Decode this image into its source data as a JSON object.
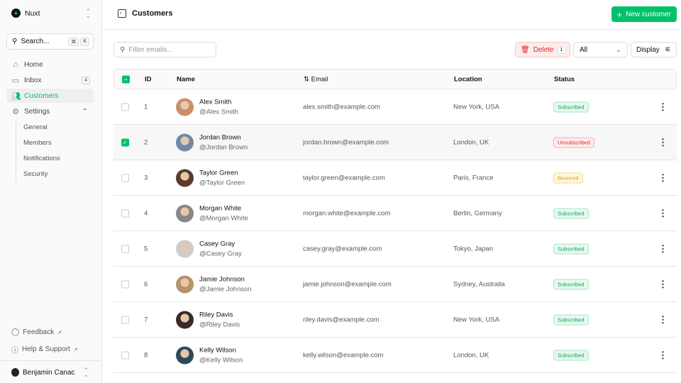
{
  "sidebar": {
    "brand": "Nuxt",
    "search": "Search...",
    "kbd": [
      "⌘",
      "K"
    ],
    "nav": [
      {
        "label": "Home",
        "icon": "home-icon"
      },
      {
        "label": "Inbox",
        "icon": "inbox-icon",
        "badge": "4"
      },
      {
        "label": "Customers",
        "icon": "users-icon",
        "active": true
      },
      {
        "label": "Settings",
        "icon": "gear-icon"
      }
    ],
    "settings_sub": [
      "General",
      "Members",
      "Notifications",
      "Security"
    ],
    "footer": [
      "Feedback",
      "Help & Support"
    ],
    "user": "Benjamin Canac"
  },
  "header": {
    "title": "Customers",
    "new_button": "New customer"
  },
  "toolbar": {
    "filter_placeholder": "Filter emails...",
    "delete_label": "Delete",
    "delete_count": "1",
    "status_filter": "All",
    "display_label": "Display"
  },
  "table": {
    "columns": [
      "ID",
      "Name",
      "Email",
      "Location",
      "Status"
    ],
    "rows": [
      {
        "id": "1",
        "name": "Alex Smith",
        "handle": "@Alex Smith",
        "email": "alex.smith@example.com",
        "location": "New York, USA",
        "status": "Subscribed",
        "checked": false
      },
      {
        "id": "2",
        "name": "Jordan Brown",
        "handle": "@Jordan Brown",
        "email": "jordan.brown@example.com",
        "location": "London, UK",
        "status": "Unsubscribed",
        "checked": true
      },
      {
        "id": "3",
        "name": "Taylor Green",
        "handle": "@Taylor Green",
        "email": "taylor.green@example.com",
        "location": "Paris, France",
        "status": "Bounced",
        "checked": false
      },
      {
        "id": "4",
        "name": "Morgan White",
        "handle": "@Morgan White",
        "email": "morgan.white@example.com",
        "location": "Berlin, Germany",
        "status": "Subscribed",
        "checked": false
      },
      {
        "id": "5",
        "name": "Casey Gray",
        "handle": "@Casey Gray",
        "email": "casey.gray@example.com",
        "location": "Tokyo, Japan",
        "status": "Subscribed",
        "checked": false
      },
      {
        "id": "6",
        "name": "Jamie Johnson",
        "handle": "@Jamie Johnson",
        "email": "jamie.johnson@example.com",
        "location": "Sydney, Australia",
        "status": "Subscribed",
        "checked": false
      },
      {
        "id": "7",
        "name": "Riley Davis",
        "handle": "@Riley Davis",
        "email": "riley.davis@example.com",
        "location": "New York, USA",
        "status": "Subscribed",
        "checked": false
      },
      {
        "id": "8",
        "name": "Kelly Wilson",
        "handle": "@Kelly Wilson",
        "email": "kelly.wilson@example.com",
        "location": "London, UK",
        "status": "Subscribed",
        "checked": false
      }
    ]
  },
  "colors": {
    "accent": "#00c16a",
    "danger": "#e0242a",
    "warning": "#d99a06"
  }
}
